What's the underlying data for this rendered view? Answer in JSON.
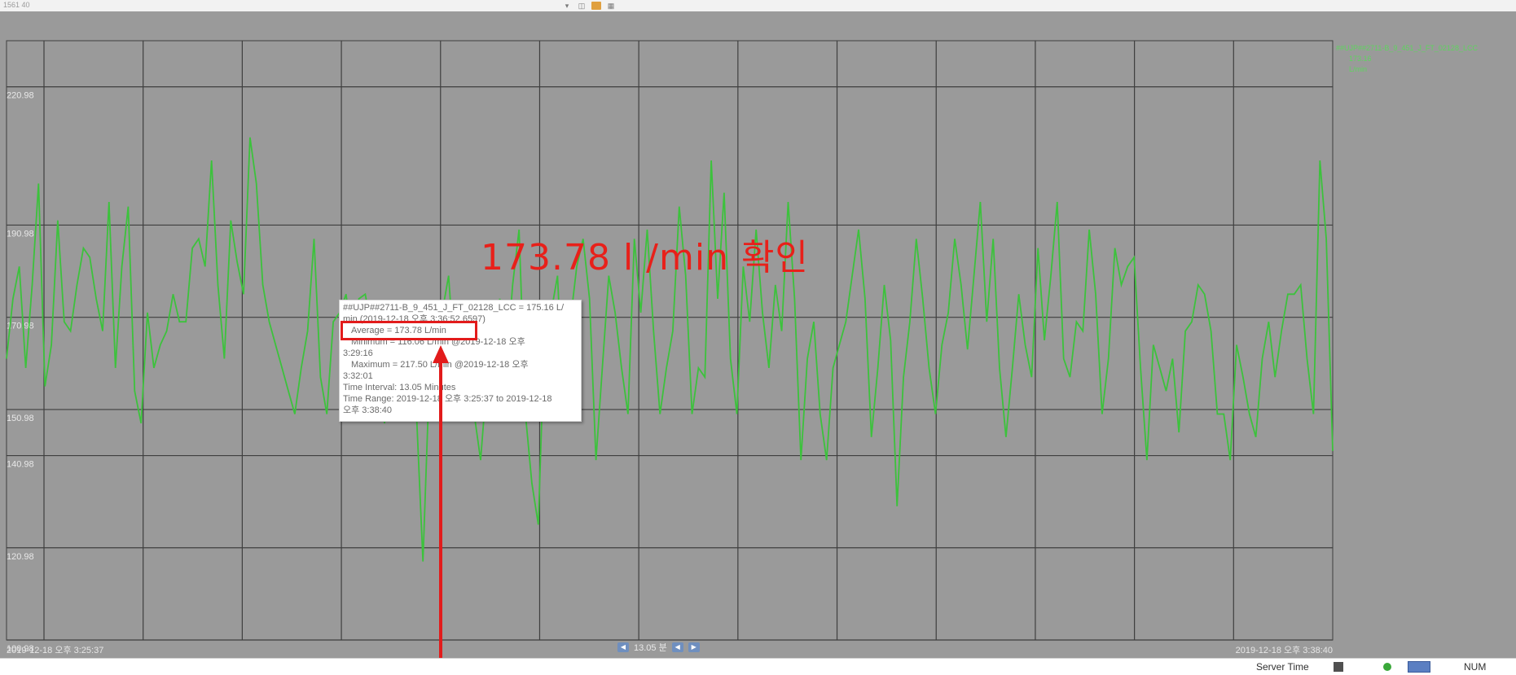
{
  "window": {
    "title": "1561 40"
  },
  "chart_data": {
    "type": "line",
    "y_ticks": [
      "220.98",
      "190.98",
      "170.98",
      "150.98",
      "140.98",
      "120.98",
      "100.98"
    ],
    "ylim": [
      100.98,
      230.98
    ],
    "x_start_label": "2019-12-18 오후 3:25:37",
    "x_end_label": "2019-12-18 오후 3:38:40",
    "legend": {
      "tag": "##UJP##2711-B_9_451_J_FT_02128_LCC",
      "value": "173.16",
      "unit": "L/min"
    },
    "series": [
      {
        "name": "##UJP##2711-B_9_451_J_FT_02128_LCC",
        "color": "#3cc23c",
        "values": [
          162,
          175,
          182,
          160,
          178,
          200,
          156,
          165,
          192,
          170,
          168,
          178,
          186,
          184,
          175,
          168,
          196,
          160,
          182,
          195,
          155,
          148,
          172,
          160,
          165,
          168,
          176,
          170,
          170,
          186,
          188,
          182,
          205,
          178,
          162,
          192,
          183,
          176,
          210,
          200,
          178,
          170,
          165,
          160,
          155,
          150,
          160,
          168,
          188,
          158,
          150,
          170,
          172,
          176,
          165,
          175,
          176,
          168,
          160,
          148,
          158,
          170,
          172,
          162,
          150,
          118,
          158,
          165,
          172,
          180,
          160,
          155,
          170,
          150,
          140,
          158,
          168,
          175,
          160,
          178,
          190,
          150,
          135,
          126,
          168,
          172,
          180,
          150,
          170,
          182,
          188,
          175,
          140,
          160,
          180,
          172,
          160,
          150,
          188,
          172,
          190,
          168,
          150,
          160,
          168,
          195,
          180,
          150,
          160,
          158,
          205,
          175,
          198,
          162,
          150,
          182,
          170,
          190,
          172,
          160,
          178,
          168,
          196,
          175,
          140,
          162,
          170,
          150,
          140,
          160,
          165,
          170,
          180,
          190,
          175,
          145,
          160,
          178,
          166,
          130,
          158,
          170,
          188,
          175,
          160,
          150,
          165,
          172,
          188,
          178,
          164,
          180,
          196,
          170,
          188,
          160,
          145,
          160,
          176,
          165,
          158,
          186,
          166,
          180,
          196,
          162,
          158,
          170,
          168,
          190,
          176,
          150,
          162,
          186,
          178,
          182,
          184,
          160,
          140,
          165,
          160,
          155,
          162,
          146,
          168,
          170,
          178,
          176,
          168,
          150,
          150,
          140,
          165,
          158,
          150,
          145,
          162,
          170,
          158,
          168,
          176,
          176,
          178,
          162,
          150,
          205,
          188,
          142
        ]
      }
    ],
    "average": 173.78,
    "maximum": 217.5
  },
  "tooltip": {
    "line1": "##UJP##2711-B_9_451_J_FT_02128_LCC = 175.16 L/",
    "line2": "min (2019-12-18 오후 3:36:52.6597)",
    "line3": "Average =  173.78 L/min",
    "line4": "Minimum =  116.06 L/min @2019-12-18 오후",
    "line5": "3:29:16",
    "line6": "Maximum =  217.50 L/min @2019-12-18 오후",
    "line7": "3:32:01",
    "line8": "Time Interval: 13.05 Minutes",
    "line9": "Time Range:  2019-12-18 오후 3:25:37 to 2019-12-18",
    "line10": "오후 3:38:40"
  },
  "annotation": {
    "text": "173.78 l /min 확인",
    "color": "#e8201a"
  },
  "nav": {
    "interval": "13.05 분"
  },
  "statusbar": {
    "server_time": "Server Time",
    "num": "NUM"
  },
  "colors": {
    "plot_bg": "#9a9a9a",
    "grid": "#3f3f3f",
    "trend": "#3cc23c",
    "highlight": "#e21b1b"
  }
}
